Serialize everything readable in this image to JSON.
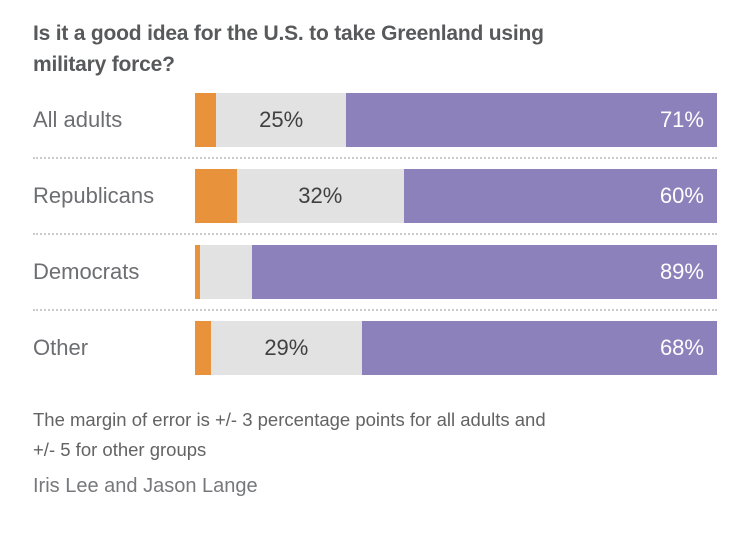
{
  "title_lines": [
    "Is it a good idea for the U.S. to take Greenland using",
    "military force?"
  ],
  "footnote_lines": [
    "The margin of error is +/- 3 percentage points for all adults and",
    "+/- 5 for other groups"
  ],
  "byline": "Iris Lee and Jason Lange",
  "colors": {
    "orange": "#E8923C",
    "gray": "#E2E2E2",
    "purple": "#8D81BC",
    "title_text": "#58595B",
    "category_text": "#6D6E71",
    "value_dark_text": "#404040",
    "value_light_text": "#FFFFFF",
    "separator": "#CBCBCB",
    "footnote_text": "#636363",
    "background": "#FFFFFF"
  },
  "chart_data": {
    "type": "bar",
    "orientation": "horizontal",
    "stacked": true,
    "title": "Is it a good idea for the U.S. to take Greenland using military force?",
    "categories": [
      "All adults",
      "Republicans",
      "Democrats",
      "Other"
    ],
    "series": [
      {
        "name": "orange-segment",
        "color": "#E8923C",
        "values": [
          4,
          8,
          1,
          3
        ],
        "labels": [
          "",
          "",
          "",
          ""
        ]
      },
      {
        "name": "gray-segment",
        "color": "#E2E2E2",
        "values": [
          25,
          32,
          10,
          29
        ],
        "labels": [
          "25%",
          "32%",
          "",
          "29%"
        ]
      },
      {
        "name": "purple-segment",
        "color": "#8D81BC",
        "values": [
          71,
          60,
          89,
          68
        ],
        "labels": [
          "71%",
          "60%",
          "89%",
          "68%"
        ]
      }
    ],
    "xlim": [
      0,
      100
    ],
    "value_format": "percent",
    "legend": "none",
    "grid": false,
    "row_separator_style": "dotted"
  }
}
